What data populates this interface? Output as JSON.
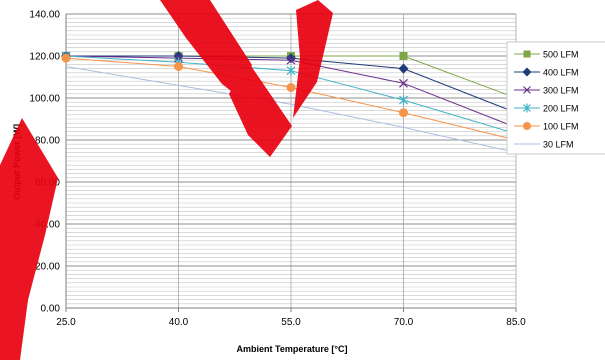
{
  "chart_data": {
    "type": "line",
    "xlabel": "Ambient Temperature [°C]",
    "ylabel": "Output Power [W]",
    "x": [
      25,
      40,
      55,
      70,
      85
    ],
    "x_tick_labels": [
      "25.0",
      "40.0",
      "55.0",
      "70.0",
      "85.0"
    ],
    "y_tick_labels": [
      "0.00",
      "20.00",
      "40.00",
      "60.00",
      "80.00",
      "100.00",
      "120.00",
      "140.00"
    ],
    "ylim": [
      0,
      140
    ],
    "y_tick_step": 20,
    "grid": true,
    "legend": "right",
    "series": [
      {
        "name": "500 LFM",
        "color": "#7fa645",
        "marker": "square",
        "values": [
          120,
          120,
          120,
          120,
          100
        ]
      },
      {
        "name": "400 LFM",
        "color": "#1f3b7a",
        "marker": "diamond",
        "values": [
          120,
          120,
          119,
          114,
          93
        ]
      },
      {
        "name": "300 LFM",
        "color": "#6a2d8c",
        "marker": "x",
        "values": [
          120,
          119,
          118,
          107,
          86
        ]
      },
      {
        "name": "200 LFM",
        "color": "#3fb3c8",
        "marker": "star",
        "values": [
          120,
          117,
          113,
          99,
          83
        ]
      },
      {
        "name": "100 LFM",
        "color": "#f7944a",
        "marker": "circle",
        "values": [
          119,
          115,
          105,
          93,
          80
        ]
      },
      {
        "name": "30 LFM",
        "color": "#a9bfe0",
        "marker": "none",
        "values": [
          115,
          106,
          97,
          86,
          74
        ]
      }
    ]
  },
  "watermark_color": "#e8000f"
}
